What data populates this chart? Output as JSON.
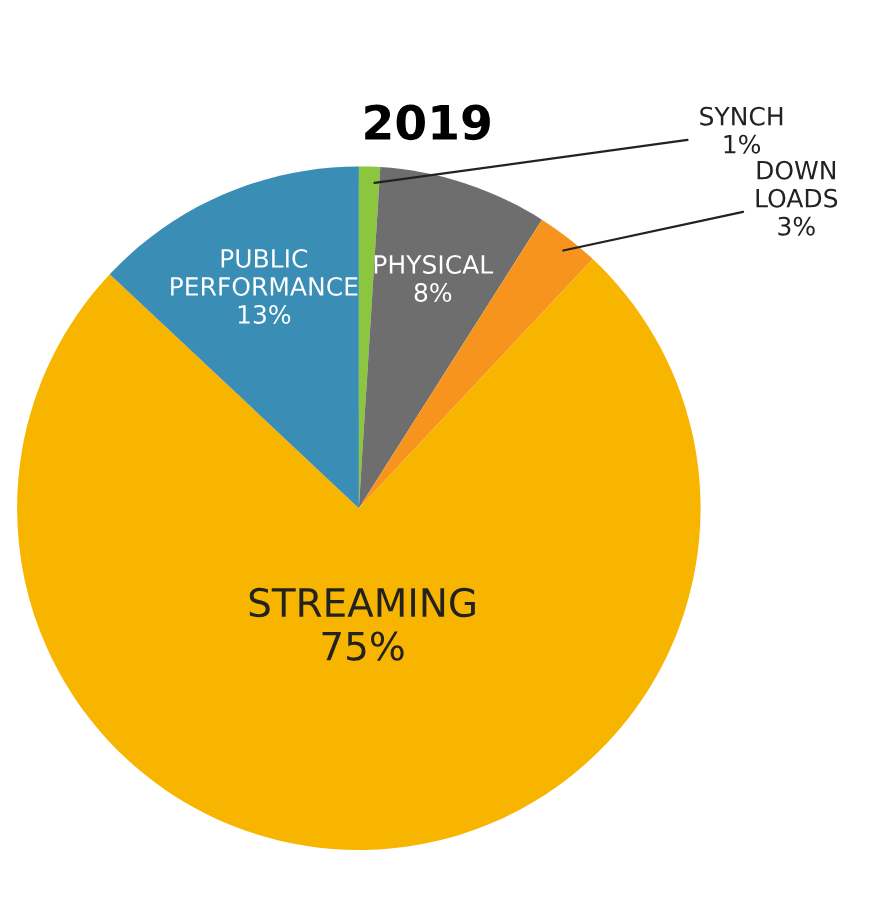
{
  "chart_data": {
    "type": "pie",
    "title": "2019",
    "categories": [
      "SYNCH",
      "PHYSICAL",
      "DOWN\nLOADS",
      "STREAMING",
      "PUBLIC\nPERFORMANCE"
    ],
    "values": [
      1,
      8,
      3,
      75,
      13
    ],
    "value_labels": [
      "1%",
      "8%",
      "3%",
      "75%",
      "13%"
    ],
    "colors": [
      "#8cc63f",
      "#6e6e6e",
      "#f7941d",
      "#f7b500",
      "#3a8db5"
    ]
  }
}
